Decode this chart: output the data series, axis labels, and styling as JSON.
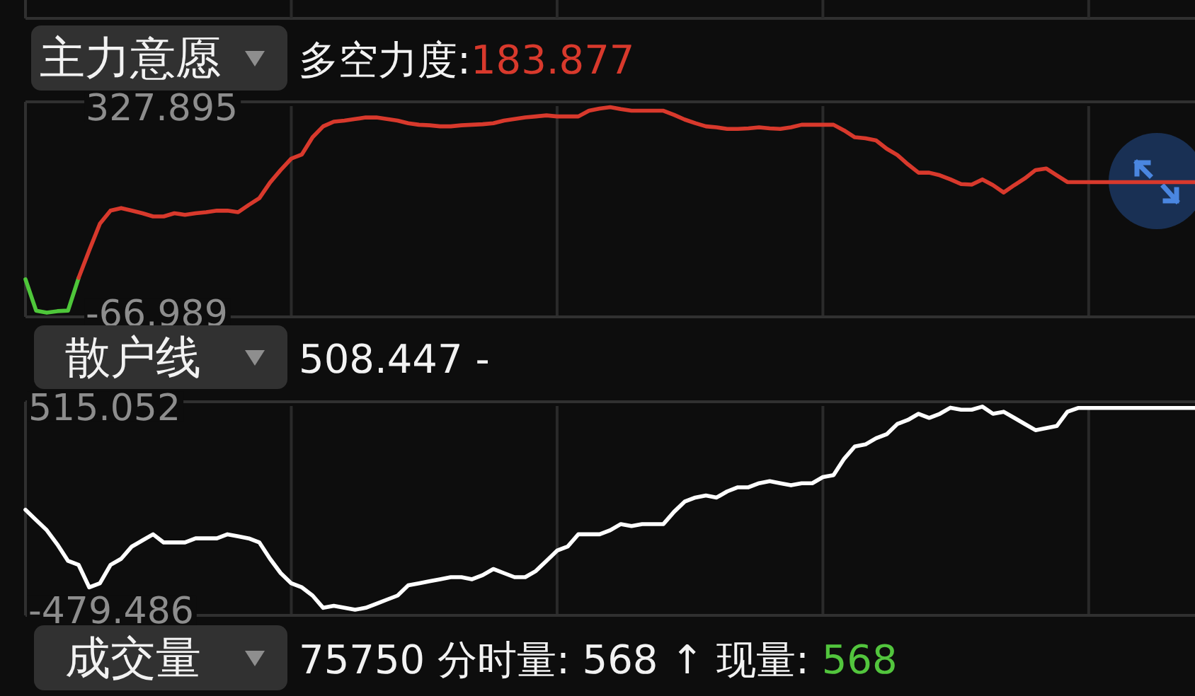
{
  "chart_data": [
    {
      "type": "line",
      "title": "主力意愿",
      "subtitle": "多空力度:183.877",
      "tick_labels": "y",
      "grid": "x",
      "categories": [
        null,
        null,
        null,
        null,
        null,
        null,
        null,
        null,
        null,
        null,
        null,
        null,
        null,
        null,
        null,
        null,
        null,
        null,
        null,
        null,
        null,
        null,
        null,
        null,
        null,
        null,
        null,
        null,
        null,
        null,
        null,
        null,
        null,
        null,
        null,
        null,
        null,
        null,
        null,
        null,
        null,
        null,
        null,
        null,
        null,
        null,
        null,
        null,
        null,
        null,
        null,
        null,
        null,
        null,
        null,
        null,
        null,
        null,
        null,
        null,
        null,
        null,
        null,
        null,
        null,
        null,
        null,
        null,
        null,
        null,
        null,
        null,
        null,
        null,
        null,
        null,
        null,
        null,
        null,
        null,
        null,
        null,
        null,
        null,
        null,
        null,
        null,
        null,
        null,
        null,
        null,
        null,
        null,
        null,
        null,
        null,
        null,
        null,
        null,
        null,
        null,
        null,
        null,
        null,
        null,
        null,
        null,
        null,
        null,
        null,
        null
      ],
      "series": [
        {
          "color": "#4ec73a",
          "values": [
            -3,
            -63,
            -66.989,
            -64,
            -63,
            0,
            null,
            null,
            null,
            null,
            null,
            null,
            null,
            null,
            null,
            null,
            null,
            null,
            null,
            null,
            null,
            null,
            null,
            null,
            null,
            null,
            null,
            null,
            null,
            null,
            null,
            null,
            null,
            null,
            null,
            null,
            null,
            null,
            null,
            null,
            null,
            null,
            null,
            null,
            null,
            null,
            null,
            null,
            null,
            null,
            null,
            null,
            null,
            null,
            null,
            null,
            null,
            null,
            null,
            null,
            null,
            null,
            null,
            null,
            null,
            null,
            null,
            null,
            null,
            null,
            null,
            null,
            null,
            null,
            null,
            null,
            null,
            null,
            null,
            null,
            null,
            null,
            null,
            null,
            null,
            null,
            null,
            null,
            null,
            null,
            null,
            null,
            null,
            null,
            null,
            null,
            null,
            null,
            null,
            null,
            null,
            null,
            null,
            null,
            null,
            null,
            null,
            null,
            null,
            null,
            null
          ]
        },
        {
          "color": "#d8392c",
          "values": [
            null,
            null,
            null,
            null,
            null,
            0,
            53,
            104,
            129,
            134,
            129,
            124,
            118,
            118,
            124,
            121,
            124,
            126,
            129,
            129,
            126,
            140,
            153,
            183,
            207,
            229,
            237,
            270,
            291,
            300,
            302,
            305,
            308,
            308,
            305,
            302,
            297,
            294,
            293,
            291,
            291,
            293,
            294,
            295,
            297,
            302,
            305,
            308,
            310,
            312,
            310,
            310,
            310,
            321,
            325,
            327.895,
            324,
            321,
            321,
            321,
            321,
            313,
            304,
            297,
            291,
            289,
            286,
            286,
            287,
            289,
            287,
            286,
            289,
            294,
            294,
            294,
            294,
            283,
            270,
            268,
            264,
            248,
            236,
            218,
            202,
            202,
            197,
            189,
            180,
            179,
            189,
            178,
            164,
            178,
            191,
            207,
            210,
            197,
            183.877,
            183.877,
            183.877,
            183.877,
            183.877,
            183.877,
            183.877,
            183.877,
            183.877,
            183.877,
            183.877,
            183.877,
            183.877
          ]
        }
      ],
      "ylim": [
        -75,
        338
      ],
      "yticks": [
        327.895,
        -66.989
      ]
    },
    {
      "type": "line",
      "title": "散户线",
      "subtitle": "508.447 -",
      "tick_labels": "y",
      "grid": "x",
      "categories": [
        null,
        null,
        null,
        null,
        null,
        null,
        null,
        null,
        null,
        null,
        null,
        null,
        null,
        null,
        null,
        null,
        null,
        null,
        null,
        null,
        null,
        null,
        null,
        null,
        null,
        null,
        null,
        null,
        null,
        null,
        null,
        null,
        null,
        null,
        null,
        null,
        null,
        null,
        null,
        null,
        null,
        null,
        null,
        null,
        null,
        null,
        null,
        null,
        null,
        null,
        null,
        null,
        null,
        null,
        null,
        null,
        null,
        null,
        null,
        null,
        null,
        null,
        null,
        null,
        null,
        null,
        null,
        null,
        null,
        null,
        null,
        null,
        null,
        null,
        null,
        null,
        null,
        null,
        null,
        null,
        null,
        null,
        null,
        null,
        null,
        null,
        null,
        null,
        null,
        null,
        null,
        null,
        null,
        null,
        null,
        null,
        null,
        null,
        null,
        null,
        null,
        null,
        null,
        null,
        null,
        null,
        null,
        null,
        null,
        null,
        null
      ],
      "series": [
        {
          "color": "#ffffff",
          "values": [
            10,
            -40,
            -90,
            -160,
            -240,
            -260,
            -370,
            -350,
            -260,
            -230,
            -170,
            -140,
            -110,
            -150,
            -150,
            -150,
            -130,
            -130,
            -130,
            -110,
            -120,
            -130,
            -150,
            -230,
            -300,
            -350,
            -370,
            -410,
            -470,
            -460,
            -470,
            -479.486,
            -470,
            -450,
            -430,
            -410,
            -360,
            -350,
            -340,
            -330,
            -320,
            -320,
            -330,
            -310,
            -280,
            -300,
            -320,
            -320,
            -290,
            -240,
            -190,
            -170,
            -110,
            -110,
            -110,
            -90,
            -60,
            -70,
            -60,
            -60,
            -60,
            0,
            50,
            70,
            80,
            70,
            100,
            120,
            120,
            140,
            150,
            140,
            130,
            140,
            140,
            170,
            180,
            260,
            320,
            330,
            360,
            380,
            430,
            450,
            480,
            460,
            480,
            510,
            500,
            500,
            515.052,
            480,
            490,
            460,
            430,
            400,
            410,
            420,
            490,
            508.447,
            508.447,
            508.447,
            508.447,
            508.447,
            508.447,
            508.447,
            508.447,
            508.447,
            508.447,
            508.447,
            508.447
          ]
        }
      ],
      "ylim": [
        -507,
        539
      ],
      "yticks": [
        515.052,
        -479.486
      ]
    },
    {
      "type": "other",
      "title": "成交量",
      "subtitle": "75750 分时量: 568 ↑ 现量: 568",
      "color": "#52c53d"
    }
  ]
}
